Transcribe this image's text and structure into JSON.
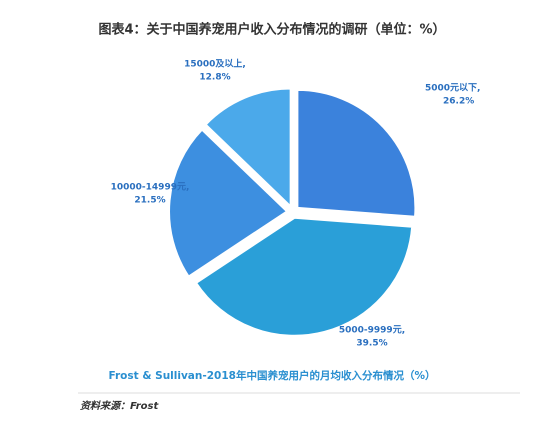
{
  "chart_data": {
    "type": "pie",
    "title": "图表4：关于中国养宠用户收入分布情况的调研（单位：%）",
    "subtitle": "Frost & Sullivan-2018年中国养宠用户的月均收入分布情况（%）",
    "source": "资料来源：Frost",
    "categories": [
      "5000元以下,",
      "5000-9999元,",
      "10000-14999元,",
      "15000及以上,"
    ],
    "values": [
      26.2,
      39.5,
      21.5,
      12.8
    ],
    "value_labels": [
      "26.2%",
      "39.5%",
      "21.5%",
      "12.8%"
    ],
    "colors": [
      "#3b82dc",
      "#2a9fd8",
      "#3d8fe0",
      "#4ba9ea"
    ]
  }
}
